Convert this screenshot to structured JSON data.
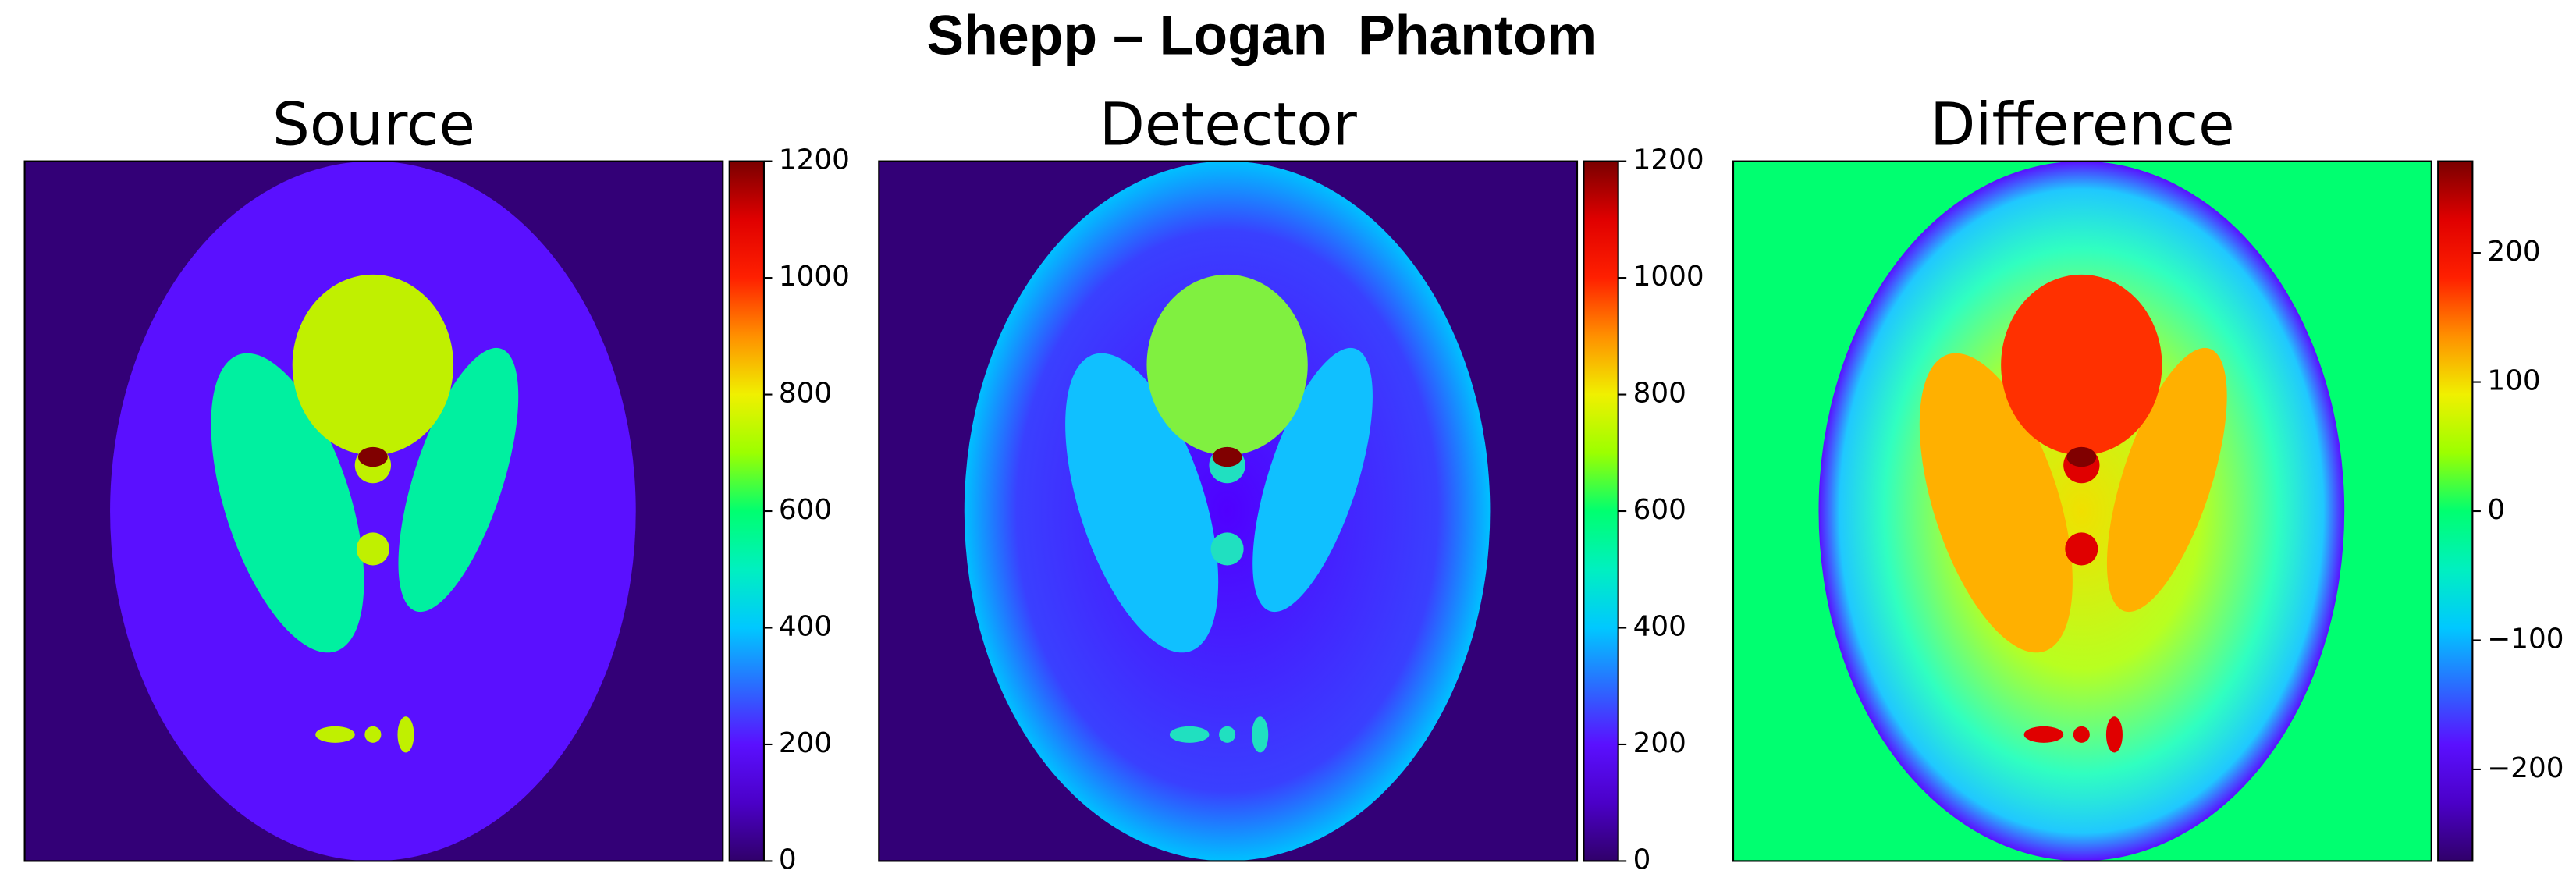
{
  "title": "Shepp – Logan  Phantom",
  "chart_data": [
    {
      "type": "heatmap",
      "title": "Source",
      "clim": [
        0,
        1200
      ],
      "cticks": [
        0,
        200,
        400,
        600,
        800,
        1000,
        1200
      ]
    },
    {
      "type": "heatmap",
      "title": "Detector",
      "clim": [
        0,
        1200
      ],
      "cticks": [
        0,
        200,
        400,
        600,
        800,
        1000,
        1200
      ]
    },
    {
      "type": "heatmap",
      "title": "Difference",
      "clim": [
        -271,
        271
      ],
      "cticks": [
        {
          "value": -200,
          "label": "−200"
        },
        {
          "value": -100,
          "label": "−100"
        },
        0,
        100,
        200
      ]
    }
  ]
}
